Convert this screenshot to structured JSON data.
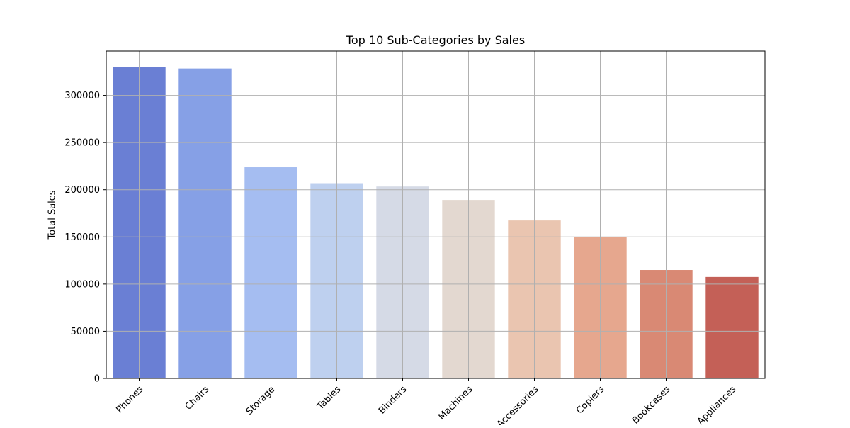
{
  "chart_data": {
    "type": "bar",
    "title": "Top 10 Sub-Categories by Sales",
    "xlabel": "",
    "ylabel": "Total Sales",
    "categories": [
      "Phones",
      "Chairs",
      "Storage",
      "Tables",
      "Binders",
      "Machines",
      "Accessories",
      "Copiers",
      "Bookcases",
      "Appliances"
    ],
    "values": [
      330000,
      328500,
      223800,
      206900,
      203400,
      189200,
      167400,
      150000,
      114900,
      107500
    ],
    "colors": [
      "#6a7fd4",
      "#86a0e6",
      "#a5bdf1",
      "#bed0ef",
      "#d5dae6",
      "#e3d8d0",
      "#eac5b0",
      "#e6a78e",
      "#d98974",
      "#c46057"
    ],
    "ylim": [
      0,
      347000
    ],
    "yticks": [
      0,
      50000,
      100000,
      150000,
      200000,
      250000,
      300000
    ],
    "grid": true,
    "legend": "none"
  }
}
